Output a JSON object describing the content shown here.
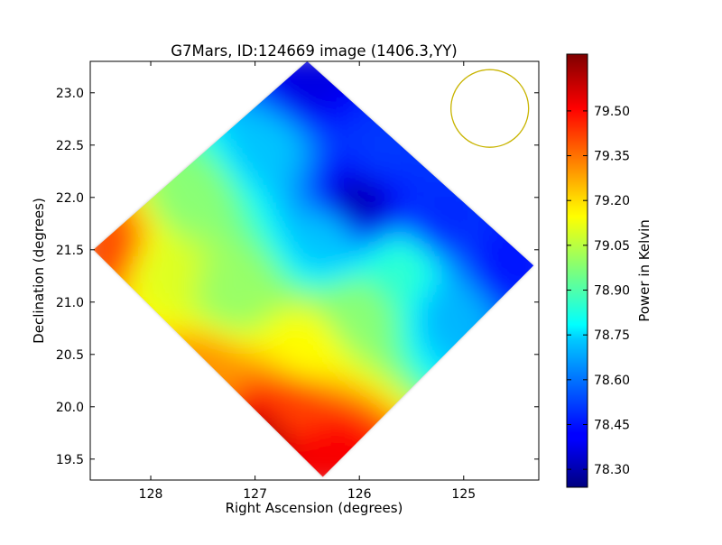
{
  "chart_data": {
    "type": "heatmap",
    "title": "G7Mars, ID:124669 image (1406.3,YY)",
    "xlabel": "Right Ascension (degrees)",
    "ylabel": "Declination (degrees)",
    "xlim": [
      128.58,
      124.28
    ],
    "ylim": [
      19.3,
      23.3
    ],
    "x_inverted": true,
    "xticks": [
      128,
      127,
      126,
      125
    ],
    "xtick_labels": [
      "128",
      "127",
      "126",
      "125"
    ],
    "yticks": [
      19.5,
      20.0,
      20.5,
      21.0,
      21.5,
      22.0,
      22.5,
      23.0
    ],
    "ytick_labels": [
      "19.5",
      "20.0",
      "20.5",
      "21.0",
      "21.5",
      "22.0",
      "22.5",
      "23.0"
    ],
    "colorbar": {
      "label": "Power in Kelvin",
      "range": [
        78.24,
        79.69
      ],
      "ticks": [
        78.3,
        78.45,
        78.6,
        78.75,
        78.9,
        79.05,
        79.2,
        79.35,
        79.5
      ],
      "tick_labels": [
        "78.30",
        "78.45",
        "78.60",
        "78.75",
        "78.90",
        "79.05",
        "79.20",
        "79.35",
        "79.50"
      ],
      "colormap": "jet"
    },
    "field_corners": [
      {
        "ra": 126.5,
        "dec": 23.3
      },
      {
        "ra": 124.33,
        "dec": 21.35
      },
      {
        "ra": 126.35,
        "dec": 19.33
      },
      {
        "ra": 128.55,
        "dec": 21.5
      }
    ],
    "samples": [
      {
        "ra": 126.5,
        "dec": 23.1,
        "value": 78.38
      },
      {
        "ra": 125.8,
        "dec": 22.4,
        "value": 78.5
      },
      {
        "ra": 126.0,
        "dec": 21.95,
        "value": 78.32
      },
      {
        "ra": 125.2,
        "dec": 21.8,
        "value": 78.48
      },
      {
        "ra": 124.6,
        "dec": 21.35,
        "value": 78.45
      },
      {
        "ra": 126.9,
        "dec": 22.5,
        "value": 78.7
      },
      {
        "ra": 127.6,
        "dec": 22.0,
        "value": 78.98
      },
      {
        "ra": 126.3,
        "dec": 21.6,
        "value": 78.7
      },
      {
        "ra": 125.6,
        "dec": 21.3,
        "value": 78.85
      },
      {
        "ra": 128.4,
        "dec": 21.5,
        "value": 79.4
      },
      {
        "ra": 127.9,
        "dec": 21.3,
        "value": 79.1
      },
      {
        "ra": 127.2,
        "dec": 21.1,
        "value": 79.0
      },
      {
        "ra": 126.0,
        "dec": 20.9,
        "value": 78.98
      },
      {
        "ra": 125.1,
        "dec": 20.9,
        "value": 78.68
      },
      {
        "ra": 127.5,
        "dec": 20.3,
        "value": 79.3
      },
      {
        "ra": 126.5,
        "dec": 20.55,
        "value": 79.15
      },
      {
        "ra": 126.65,
        "dec": 19.95,
        "value": 79.42
      },
      {
        "ra": 126.9,
        "dec": 19.7,
        "value": 79.62
      },
      {
        "ra": 126.3,
        "dec": 19.5,
        "value": 79.52
      }
    ],
    "beam_marker": {
      "shape": "circle",
      "ra": 124.75,
      "dec": 22.85,
      "color": "#c8b400"
    },
    "grid": false
  }
}
